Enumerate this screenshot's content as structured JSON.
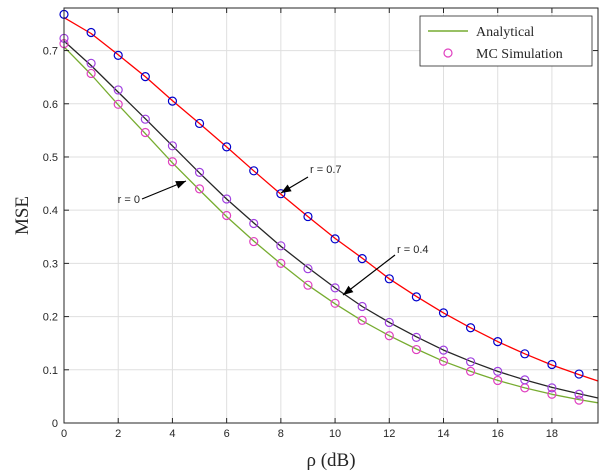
{
  "chart_data": {
    "type": "line",
    "xlabel": "ρ (dB)",
    "ylabel": "MSE",
    "xlim": [
      0,
      19.7
    ],
    "ylim": [
      0,
      0.78
    ],
    "xticks": [
      0,
      2,
      4,
      6,
      8,
      10,
      12,
      14,
      16,
      18
    ],
    "yticks": [
      0,
      0.1,
      0.2,
      0.3,
      0.4,
      0.5,
      0.6,
      0.7
    ],
    "grid": true,
    "legend": {
      "position": "top-right",
      "entries": [
        {
          "label": "Analytical",
          "marker": "line",
          "color": "#77AC30"
        },
        {
          "label": "MC Simulation",
          "marker": "circle",
          "color": "#E040C0"
        }
      ]
    },
    "colors": {
      "analytical_r0": "#77AC30",
      "analytical_r04": "#262626",
      "analytical_r07": "#FF0000",
      "sim_r0": "#E040C0",
      "sim_r04": "#A040E0",
      "sim_r07": "#0000CC"
    },
    "sim_x": [
      0,
      1,
      2,
      3,
      4,
      5,
      6,
      7,
      8,
      9,
      10,
      11,
      12,
      13,
      14,
      15,
      16,
      17,
      18,
      19
    ],
    "series": [
      {
        "annotation": "r = 0",
        "analytical": {
          "x": [
            0,
            1,
            2,
            3,
            4,
            5,
            6,
            7,
            8,
            9,
            10,
            11,
            12,
            13,
            14,
            15,
            16,
            17,
            18,
            19,
            19.7
          ],
          "y": [
            0.707,
            0.655,
            0.598,
            0.544,
            0.489,
            0.438,
            0.388,
            0.342,
            0.299,
            0.259,
            0.224,
            0.192,
            0.164,
            0.139,
            0.116,
            0.097,
            0.08,
            0.066,
            0.054,
            0.044,
            0.038
          ]
        },
        "simulation": [
          0.713,
          0.657,
          0.599,
          0.546,
          0.491,
          0.44,
          0.39,
          0.341,
          0.3,
          0.259,
          0.225,
          0.193,
          0.164,
          0.138,
          0.116,
          0.097,
          0.08,
          0.066,
          0.054,
          0.043
        ]
      },
      {
        "annotation": "r = 0.4",
        "analytical": {
          "x": [
            0,
            1,
            2,
            3,
            4,
            5,
            6,
            7,
            8,
            9,
            10,
            11,
            12,
            13,
            14,
            15,
            16,
            17,
            18,
            19,
            19.7
          ],
          "y": [
            0.718,
            0.672,
            0.622,
            0.572,
            0.521,
            0.47,
            0.421,
            0.376,
            0.332,
            0.292,
            0.254,
            0.219,
            0.189,
            0.162,
            0.137,
            0.116,
            0.097,
            0.081,
            0.067,
            0.055,
            0.047
          ]
        },
        "simulation": [
          0.723,
          0.676,
          0.626,
          0.571,
          0.521,
          0.471,
          0.421,
          0.375,
          0.333,
          0.29,
          0.254,
          0.219,
          0.189,
          0.161,
          0.137,
          0.115,
          0.097,
          0.081,
          0.066,
          0.054
        ]
      },
      {
        "annotation": "r = 0.7",
        "analytical": {
          "x": [
            0,
            1,
            2,
            3,
            4,
            5,
            6,
            7,
            8,
            9,
            10,
            11,
            12,
            13,
            14,
            15,
            16,
            17,
            18,
            19,
            19.7
          ],
          "y": [
            0.762,
            0.732,
            0.692,
            0.651,
            0.606,
            0.563,
            0.519,
            0.474,
            0.43,
            0.388,
            0.347,
            0.31,
            0.271,
            0.238,
            0.207,
            0.179,
            0.153,
            0.13,
            0.109,
            0.091,
            0.079
          ]
        },
        "simulation": [
          0.768,
          0.734,
          0.691,
          0.651,
          0.605,
          0.563,
          0.519,
          0.474,
          0.431,
          0.388,
          0.346,
          0.309,
          0.271,
          0.237,
          0.207,
          0.179,
          0.153,
          0.13,
          0.11,
          0.092
        ]
      }
    ]
  }
}
